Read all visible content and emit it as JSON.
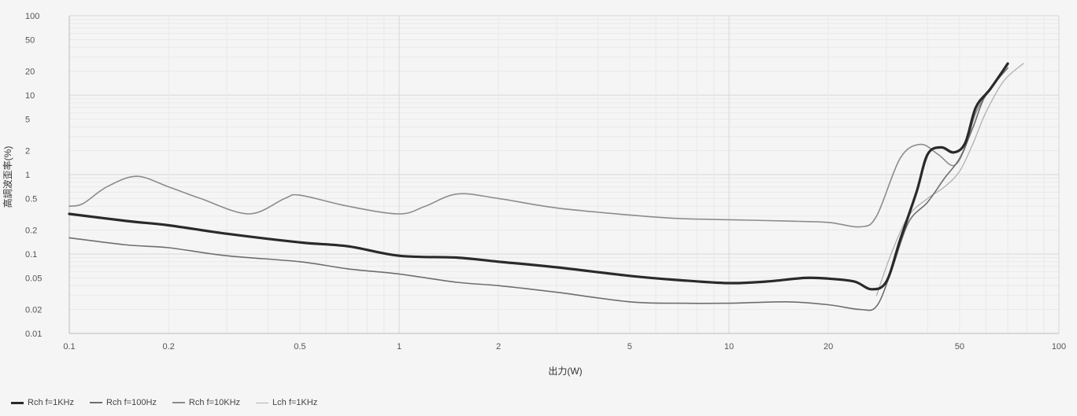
{
  "chart_data": {
    "type": "line",
    "xlabel": "出力(W)",
    "ylabel": "高調波歪率(%)",
    "xscale": "log",
    "yscale": "log",
    "xlim": [
      0.1,
      100
    ],
    "ylim": [
      0.01,
      100
    ],
    "x_ticks": [
      "0.1",
      "0.2",
      "0.5",
      "1",
      "2",
      "5",
      "10",
      "20",
      "50",
      "100"
    ],
    "x_tick_values": [
      0.1,
      0.2,
      0.5,
      1,
      2,
      5,
      10,
      20,
      50,
      100
    ],
    "y_ticks": [
      "100",
      "50",
      "20",
      "10",
      "5",
      "2",
      "1",
      "0.5",
      "0.2",
      "0.1",
      "0.05",
      "0.02",
      "0.01"
    ],
    "y_tick_values": [
      100,
      50,
      20,
      10,
      5,
      2,
      1,
      0.5,
      0.2,
      0.1,
      0.05,
      0.02,
      0.01
    ],
    "grid": true,
    "legend_position": "bottom-left",
    "series": [
      {
        "name": "Rch f=1KHz",
        "color": "#2a2a2a",
        "width": 3.2,
        "points": [
          [
            0.1,
            0.32
          ],
          [
            0.15,
            0.26
          ],
          [
            0.2,
            0.23
          ],
          [
            0.3,
            0.18
          ],
          [
            0.5,
            0.14
          ],
          [
            0.7,
            0.125
          ],
          [
            1,
            0.095
          ],
          [
            1.5,
            0.09
          ],
          [
            2,
            0.08
          ],
          [
            3,
            0.068
          ],
          [
            5,
            0.053
          ],
          [
            7,
            0.047
          ],
          [
            10,
            0.043
          ],
          [
            13,
            0.045
          ],
          [
            17,
            0.05
          ],
          [
            20,
            0.049
          ],
          [
            24,
            0.045
          ],
          [
            27,
            0.036
          ],
          [
            30,
            0.045
          ],
          [
            33,
            0.15
          ],
          [
            37,
            0.6
          ],
          [
            40,
            1.8
          ],
          [
            44,
            2.2
          ],
          [
            48,
            1.9
          ],
          [
            52,
            2.5
          ],
          [
            56,
            7
          ],
          [
            62,
            12
          ],
          [
            70,
            25
          ]
        ]
      },
      {
        "name": "Rch f=100Hz",
        "color": "#6e6e6e",
        "width": 1.6,
        "points": [
          [
            0.1,
            0.16
          ],
          [
            0.15,
            0.13
          ],
          [
            0.2,
            0.12
          ],
          [
            0.3,
            0.095
          ],
          [
            0.5,
            0.08
          ],
          [
            0.7,
            0.065
          ],
          [
            1,
            0.056
          ],
          [
            1.5,
            0.044
          ],
          [
            2,
            0.04
          ],
          [
            3,
            0.033
          ],
          [
            5,
            0.025
          ],
          [
            7,
            0.024
          ],
          [
            10,
            0.024
          ],
          [
            15,
            0.025
          ],
          [
            20,
            0.023
          ],
          [
            25,
            0.02
          ],
          [
            28,
            0.022
          ],
          [
            31,
            0.06
          ],
          [
            35,
            0.25
          ],
          [
            40,
            0.45
          ],
          [
            45,
            0.9
          ],
          [
            50,
            1.6
          ],
          [
            55,
            4
          ],
          [
            60,
            10
          ],
          [
            70,
            22
          ]
        ]
      },
      {
        "name": "Rch f=10KHz",
        "color": "#8c8c8c",
        "width": 1.6,
        "points": [
          [
            0.1,
            0.4
          ],
          [
            0.11,
            0.43
          ],
          [
            0.13,
            0.7
          ],
          [
            0.16,
            0.95
          ],
          [
            0.2,
            0.7
          ],
          [
            0.25,
            0.5
          ],
          [
            0.35,
            0.32
          ],
          [
            0.45,
            0.5
          ],
          [
            0.5,
            0.55
          ],
          [
            0.7,
            0.4
          ],
          [
            1,
            0.32
          ],
          [
            1.2,
            0.4
          ],
          [
            1.5,
            0.57
          ],
          [
            2,
            0.5
          ],
          [
            3,
            0.38
          ],
          [
            5,
            0.31
          ],
          [
            7,
            0.28
          ],
          [
            10,
            0.27
          ],
          [
            15,
            0.26
          ],
          [
            20,
            0.25
          ],
          [
            25,
            0.22
          ],
          [
            28,
            0.3
          ],
          [
            33,
            1.6
          ],
          [
            38,
            2.4
          ],
          [
            43,
            1.8
          ],
          [
            48,
            1.3
          ],
          [
            52,
            2.2
          ],
          [
            56,
            6
          ],
          [
            62,
            12
          ],
          [
            70,
            24
          ]
        ]
      },
      {
        "name": "Lch f=1KHz",
        "color": "#b4b4b4",
        "width": 1.4,
        "points": [
          [
            28,
            0.03
          ],
          [
            31,
            0.1
          ],
          [
            35,
            0.3
          ],
          [
            40,
            0.5
          ],
          [
            45,
            0.7
          ],
          [
            50,
            1.1
          ],
          [
            55,
            2.5
          ],
          [
            60,
            6
          ],
          [
            68,
            15
          ],
          [
            78,
            25
          ]
        ]
      }
    ]
  }
}
